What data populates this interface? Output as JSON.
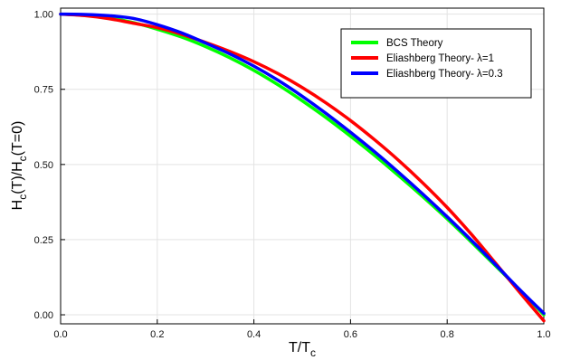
{
  "chart_data": {
    "type": "line",
    "title": "",
    "xlabel_main": "T/T",
    "xlabel_sub": "c",
    "ylabel_parts": [
      {
        "text": "H",
        "sub": false
      },
      {
        "text": "c",
        "sub": true
      },
      {
        "text": "(T)/H",
        "sub": false
      },
      {
        "text": "c",
        "sub": true
      },
      {
        "text": "(T=0)",
        "sub": false
      }
    ],
    "xlim": [
      0.0,
      1.0
    ],
    "ylim": [
      -0.03,
      1.02
    ],
    "xticks": [
      0.0,
      0.2,
      0.4,
      0.6,
      0.8,
      1.0
    ],
    "xtick_labels": [
      "0.0",
      "0.2",
      "0.4",
      "0.6",
      "0.8",
      "1.0"
    ],
    "yticks": [
      0.0,
      0.25,
      0.5,
      0.75,
      1.0
    ],
    "ytick_labels": [
      "0.00",
      "0.25",
      "0.50",
      "0.75",
      "1.00"
    ],
    "grid": true,
    "legend_position": "top-right",
    "series": [
      {
        "name": "BCS Theory",
        "color": "#00ff00",
        "x": [
          0.0,
          0.05,
          0.1,
          0.15,
          0.2,
          0.25,
          0.3,
          0.35,
          0.4,
          0.45,
          0.5,
          0.55,
          0.6,
          0.65,
          0.7,
          0.75,
          0.8,
          0.85,
          0.9,
          0.95,
          1.0
        ],
        "y": [
          1.0,
          0.997,
          0.988,
          0.972,
          0.95,
          0.924,
          0.892,
          0.855,
          0.813,
          0.765,
          0.712,
          0.655,
          0.594,
          0.53,
          0.462,
          0.392,
          0.319,
          0.242,
          0.163,
          0.083,
          0.0
        ]
      },
      {
        "name": "Eliashberg Theory- λ=1",
        "color": "#ff0000",
        "x": [
          0.0,
          0.05,
          0.1,
          0.15,
          0.2,
          0.25,
          0.3,
          0.35,
          0.4,
          0.45,
          0.5,
          0.55,
          0.6,
          0.65,
          0.7,
          0.75,
          0.8,
          0.85,
          0.9,
          0.95,
          1.0
        ],
        "y": [
          1.0,
          0.995,
          0.985,
          0.97,
          0.955,
          0.933,
          0.906,
          0.876,
          0.842,
          0.802,
          0.756,
          0.704,
          0.646,
          0.582,
          0.513,
          0.438,
          0.357,
          0.268,
          0.172,
          0.075,
          -0.02
        ]
      },
      {
        "name": "Eliashberg Theory- λ=0.3",
        "color": "#0000ff",
        "x": [
          0.0,
          0.05,
          0.1,
          0.15,
          0.2,
          0.25,
          0.3,
          0.35,
          0.4,
          0.45,
          0.5,
          0.55,
          0.6,
          0.65,
          0.7,
          0.75,
          0.8,
          0.85,
          0.9,
          0.95,
          1.0
        ],
        "y": [
          1.0,
          0.999,
          0.995,
          0.986,
          0.965,
          0.938,
          0.904,
          0.868,
          0.827,
          0.78,
          0.727,
          0.669,
          0.607,
          0.542,
          0.473,
          0.401,
          0.326,
          0.248,
          0.167,
          0.084,
          0.005
        ]
      }
    ]
  }
}
